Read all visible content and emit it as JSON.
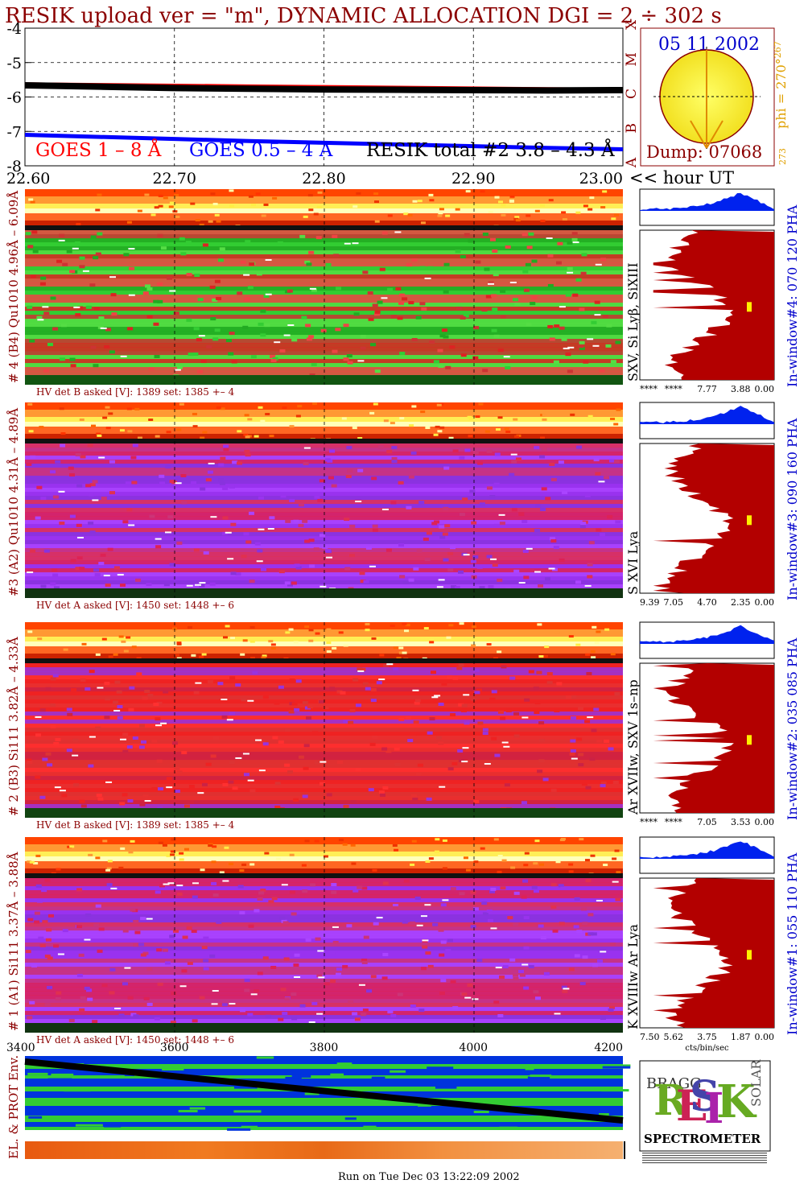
{
  "header": {
    "title": "RESIK upload ver = \"m\", DYNAMIC ALLOCATION  DGI =   2 ÷ 302 s"
  },
  "goes_panel": {
    "y_ticks": [
      "-4",
      "-5",
      "-6",
      "-7",
      "-8"
    ],
    "x_ticks": [
      "22.60",
      "22.70",
      "22.80",
      "22.90",
      "23.00"
    ],
    "x_unit_label": "<< hour UT",
    "class_letters": [
      "A",
      "B",
      "C",
      "M",
      "X"
    ],
    "legend": {
      "goes_long": "GOES 1 – 8 Å",
      "goes_short": "GOES 0.5 – 4 A",
      "resik_total": "RESIK total #2  3.8 – 4.3 Å"
    },
    "colors": {
      "goes_long": "#ff0000",
      "goes_short": "#0000ff",
      "resik": "#000000"
    }
  },
  "sun_panel": {
    "date": "05 11 2002",
    "phi_label": "phi = 270°",
    "phi_sup": "267",
    "phi_low": "273",
    "dump": "Dump: 07068"
  },
  "channels": [
    {
      "id": "4",
      "label": "# 4 (B4) Qu1010 4.96Å – 6.09Å",
      "line_ids": "SXV, Si Lyβ, SiXIII",
      "window": "In-window#4:  070 120 PHA",
      "hv": "HV det B asked [V]:  1389 set:  1385 +–    4",
      "scale": [
        "****",
        "****",
        "7.77",
        "3.88",
        "0.00"
      ],
      "theme": "green"
    },
    {
      "id": "3",
      "label": "#3 (A2) Qu1010  4.31Å – 4.89Å",
      "line_ids": "S XVI Lya",
      "window": "In-window#3:  090 160 PHA",
      "hv": "HV det A asked [V]:  1450 set:  1448 +–    6",
      "scale": [
        "9.39",
        "7.05",
        "4.70",
        "2.35",
        "0.00"
      ],
      "theme": "purple"
    },
    {
      "id": "2",
      "label": "# 2 (B3) Si111  3.82Å – 4.33Å",
      "line_ids": "Ar XVIIw,  SXV 1s–np",
      "window": "In-window#2:  035 085 PHA",
      "hv": "HV det B asked [V]:  1389 set:  1385 +–    4",
      "scale": [
        "****",
        "****",
        "7.05",
        "3.53",
        "0.00"
      ],
      "theme": "red"
    },
    {
      "id": "1",
      "label": "# 1 (A1) Si111  3.37Å –  3.88Å",
      "line_ids": "K XVIIIw  Ar Lya",
      "window": "In-window#1:  055 110 PHA",
      "hv": "HV det A asked [V]:  1450 set:  1448 +–    6",
      "scale": [
        "7.50",
        "5.62",
        "3.75",
        "1.87",
        "0.00"
      ],
      "scale_unit": "cts/bin/sec",
      "theme": "purple"
    }
  ],
  "env_panel": {
    "label": "EL. & PROT Env.",
    "x_ticks": [
      "3400",
      "3600",
      "3800",
      "4000",
      "4200"
    ]
  },
  "logo": {
    "letters": "RESIK",
    "bragg": "BRAGG",
    "solar": "SOLAR",
    "spectrometer": "SPECTROMETER"
  },
  "footer": {
    "run_on": "Run on Tue Dec 03 13:22:09 2002"
  },
  "chart_data": [
    {
      "type": "line",
      "title": "",
      "xlabel": "<< hour UT",
      "ylabel": "",
      "x": [
        22.6,
        22.65,
        22.7,
        22.75,
        22.8,
        22.85,
        22.9,
        22.95,
        23.0
      ],
      "xlim": [
        22.6,
        23.0
      ],
      "ylim": [
        -8,
        -4
      ],
      "series": [
        {
          "name": "GOES 1 – 8 Å",
          "values": [
            -5.62,
            -5.64,
            -5.66,
            -5.68,
            -5.7,
            -5.72,
            -5.74,
            -5.76,
            -5.78
          ]
        },
        {
          "name": "GOES 0.5 – 4 A",
          "values": [
            -7.1,
            -7.16,
            -7.22,
            -7.28,
            -7.33,
            -7.38,
            -7.43,
            -7.48,
            -7.52
          ]
        },
        {
          "name": "RESIK total #2  3.8 – 4.3 Å",
          "values": [
            -5.66,
            -5.7,
            -5.74,
            -5.76,
            -5.78,
            -5.79,
            -5.8,
            -5.81,
            -5.8
          ]
        }
      ]
    },
    {
      "type": "heatmap",
      "xlabel": "",
      "x_ticks": [
        3400,
        3600,
        3800,
        4000,
        4200
      ],
      "xlim": [
        3400,
        4200
      ]
    }
  ]
}
